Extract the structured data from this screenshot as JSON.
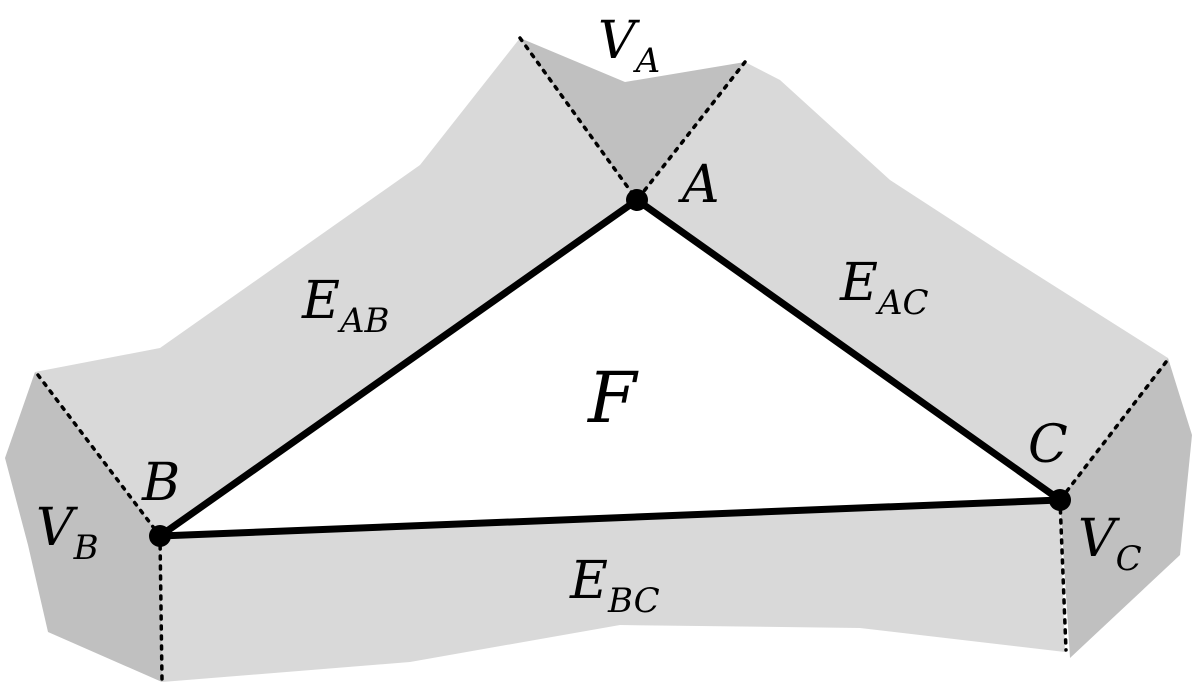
{
  "labels": {
    "vertex_a": "A",
    "vertex_b": "B",
    "vertex_c": "C",
    "face": "F",
    "edge_ab": {
      "main": "E",
      "sub": "AB"
    },
    "edge_ac": {
      "main": "E",
      "sub": "AC"
    },
    "edge_bc": {
      "main": "E",
      "sub": "BC"
    },
    "vertex_region_a": {
      "main": "V",
      "sub": "A"
    },
    "vertex_region_b": {
      "main": "V",
      "sub": "B"
    },
    "vertex_region_c": {
      "main": "V",
      "sub": "C"
    }
  },
  "colors": {
    "edge_region": "#d9d9d9",
    "vertex_region": "#c0c0c0",
    "lines": "#000000",
    "background": "#ffffff"
  }
}
